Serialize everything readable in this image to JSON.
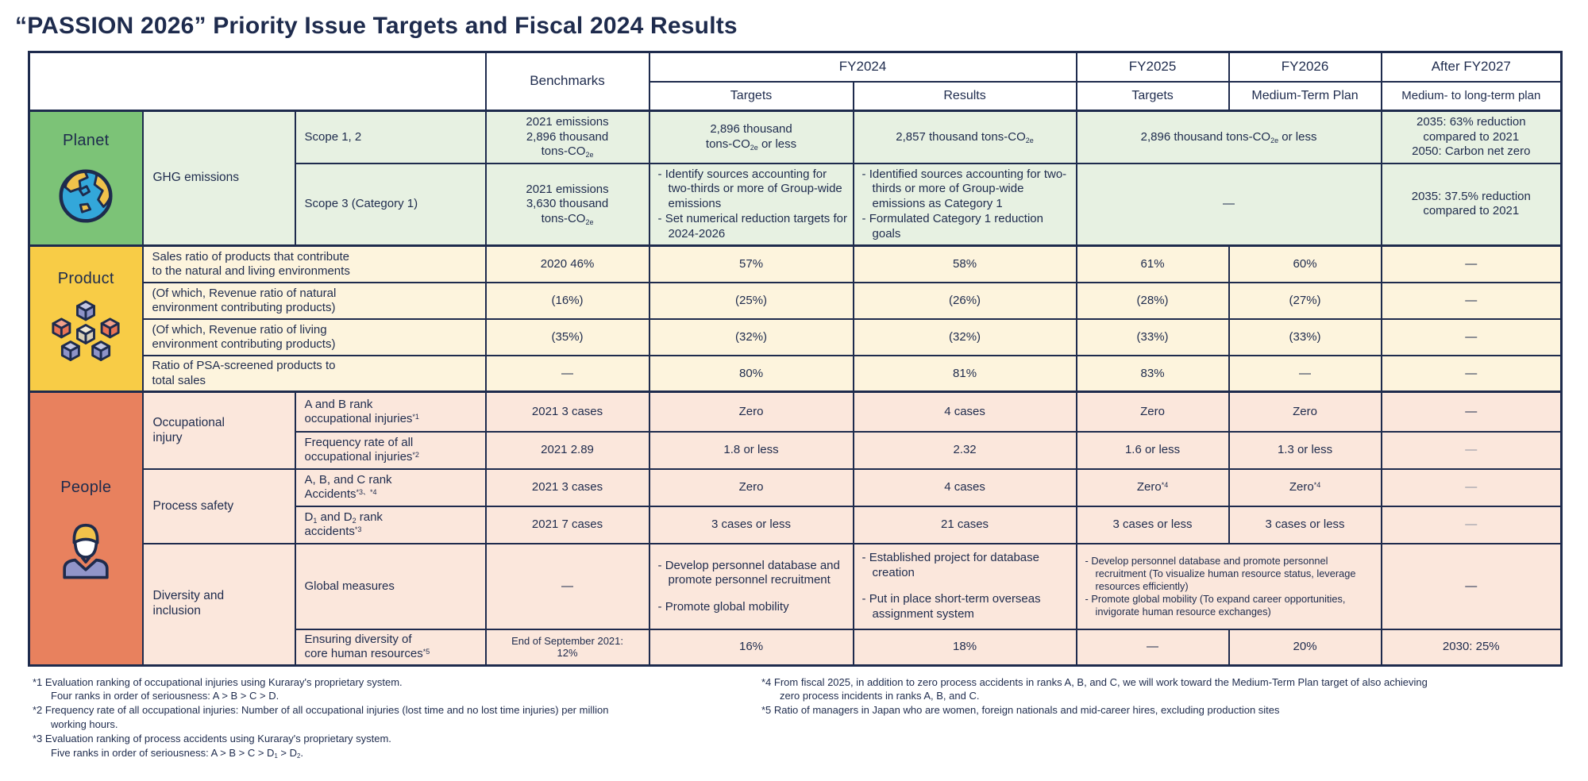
{
  "title": "“PASSION 2026” Priority Issue Targets and Fiscal 2024 Results",
  "colors": {
    "navy": "#1e2b4d",
    "planet_green": "#7cc377",
    "planet_light": "#e7f1e2",
    "product_yellow": "#f8cc46",
    "product_light": "#fdf4dd",
    "people_salmon": "#e8815e",
    "people_light": "#fbe7dc"
  },
  "header": {
    "benchmarks": "Benchmarks",
    "fy2024": "FY2024",
    "fy2024_targets": "Targets",
    "fy2024_results": "Results",
    "fy2025": "FY2025",
    "fy2025_sub": "Targets",
    "fy2026": "FY2026",
    "fy2026_sub": "Medium-Term Plan",
    "after_fy2027": "After FY2027",
    "after_fy2027_sub": "Medium- to long-term plan"
  },
  "planet": {
    "label": "Planet",
    "group": "GHG emissions",
    "scope12": {
      "item": "Scope 1, 2",
      "benchmark": "2021 emissions<br>2,896 thousand<br>tons-CO<sub>2e</sub>",
      "fy2024_target": "2,896 thousand<br>tons-CO<sub>2e</sub> or less",
      "fy2024_result": "2,857 thousand tons-CO<sub>2e</sub>",
      "fy2025_26": "2,896 thousand tons-CO<sub>2e</sub> or less",
      "after_2027": "2035: 63% reduction<br>compared to 2021<br>2050: Carbon net zero"
    },
    "scope3": {
      "item": "Scope 3 (Category 1)",
      "benchmark": "2021 emissions<br>3,630 thousand<br>tons-CO<sub>2e</sub>",
      "fy2024_target_bullets": [
        "- Identify sources accounting for two-thirds or more of Group-wide emissions",
        "- Set numerical reduction targets for 2024-2026"
      ],
      "fy2024_result_bullets": [
        "- Identified sources accounting for two-thirds or more of Group-wide emissions as Category 1",
        "- Formulated Category 1 reduction goals"
      ],
      "fy2025_26": "—",
      "after_2027": "2035: 37.5% reduction<br>compared to 2021"
    }
  },
  "product": {
    "label": "Product",
    "rows": [
      {
        "item": "Sales ratio of products that contribute<br>to the natural and living environments",
        "benchmark": "2020 46%",
        "fy2024_target": "57%",
        "fy2024_result": "58%",
        "fy2025": "61%",
        "fy2026": "60%",
        "after_2027": "—"
      },
      {
        "item": "(Of which, Revenue ratio of natural<br>environment contributing products)",
        "benchmark": "(16%)",
        "fy2024_target": "(25%)",
        "fy2024_result": "(26%)",
        "fy2025": "(28%)",
        "fy2026": "(27%)",
        "after_2027": "—"
      },
      {
        "item": "(Of which, Revenue ratio of living<br>environment contributing products)",
        "benchmark": "(35%)",
        "fy2024_target": "(32%)",
        "fy2024_result": "(32%)",
        "fy2025": "(33%)",
        "fy2026": "(33%)",
        "after_2027": "—"
      },
      {
        "item": "Ratio of PSA-screened products to<br>total sales",
        "benchmark": "—",
        "fy2024_target": "80%",
        "fy2024_result": "81%",
        "fy2025": "83%",
        "fy2026": "—",
        "after_2027": "—"
      }
    ]
  },
  "people": {
    "label": "People",
    "group_occupational": "Occupational<br>injury",
    "group_process": "Process safety",
    "group_diversity": "Diversity and<br>inclusion",
    "ab": {
      "item": "A and B rank<br>occupational injuries<sup>*1</sup>",
      "benchmark": "2021 3 cases",
      "fy2024_target": "Zero",
      "fy2024_result": "4 cases",
      "fy2025": "Zero",
      "fy2026": "Zero",
      "after_2027": "—"
    },
    "freq": {
      "item": "Frequency rate of all<br>occupational injuries<sup>*2</sup>",
      "benchmark": "2021 2.89",
      "fy2024_target": "1.8 or less",
      "fy2024_result": "2.32",
      "fy2025": "1.6 or less",
      "fy2026": "1.3 or less",
      "after_2027": "—"
    },
    "abc": {
      "item": "A, B, and C rank<br>Accidents<sup>*3、*4</sup>",
      "benchmark": "2021 3 cases",
      "fy2024_target": "Zero",
      "fy2024_result": "4 cases",
      "fy2025": "Zero<sup>*4</sup>",
      "fy2026": "Zero<sup>*4</sup>",
      "after_2027": "—"
    },
    "d1d2": {
      "item": "D<sub>1</sub> and D<sub>2</sub> rank<br>accidents<sup>*3</sup>",
      "benchmark": "2021 7 cases",
      "fy2024_target": "3 cases or less",
      "fy2024_result": "21 cases",
      "fy2025": "3 cases or less",
      "fy2026": "3 cases or less",
      "after_2027": "—"
    },
    "global": {
      "item": "Global measures",
      "benchmark": "—",
      "fy2024_target_bullets": [
        "- Develop personnel database and promote personnel recruitment",
        "- Promote global mobility"
      ],
      "fy2024_result_bullets": [
        "- Established project for database creation",
        "- Put in place short-term overseas assignment system"
      ],
      "fy2025_26_bullets": [
        "- Develop personnel database and promote personnel recruitment (To visualize human resource status, leverage resources efficiently)",
        "- Promote global mobility (To expand career opportunities, invigorate human resource exchanges)"
      ],
      "after_2027": "—"
    },
    "diversity": {
      "item": "Ensuring diversity of<br>core human resources<sup>*5</sup>",
      "benchmark": "End of September 2021:<br>12%",
      "fy2024_target": "16%",
      "fy2024_result": "18%",
      "fy2025": "—",
      "fy2026": "20%",
      "after_2027": "2030: 25%"
    }
  },
  "footnotes": {
    "left": [
      "*1 Evaluation ranking of occupational injuries using Kuraray's proprietary system.<br>Four ranks in order of seriousness: A > B > C > D.",
      "*2 Frequency rate of all occupational injuries: Number of all occupational injuries (lost time and no lost time injuries) per million working hours.",
      "*3 Evaluation ranking of process accidents using Kuraray's proprietary system.<br>Five ranks in order of seriousness: A > B > C > D<sub>1</sub> > D<sub>2</sub>."
    ],
    "right": [
      "*4 From fiscal 2025, in addition to zero process accidents in ranks A, B, and C, we will work toward the Medium-Term Plan target of also achieving zero process incidents in ranks A, B, and C.",
      "*5 Ratio of managers in Japan who are women, foreign nationals and mid-career hires, excluding production sites"
    ]
  }
}
